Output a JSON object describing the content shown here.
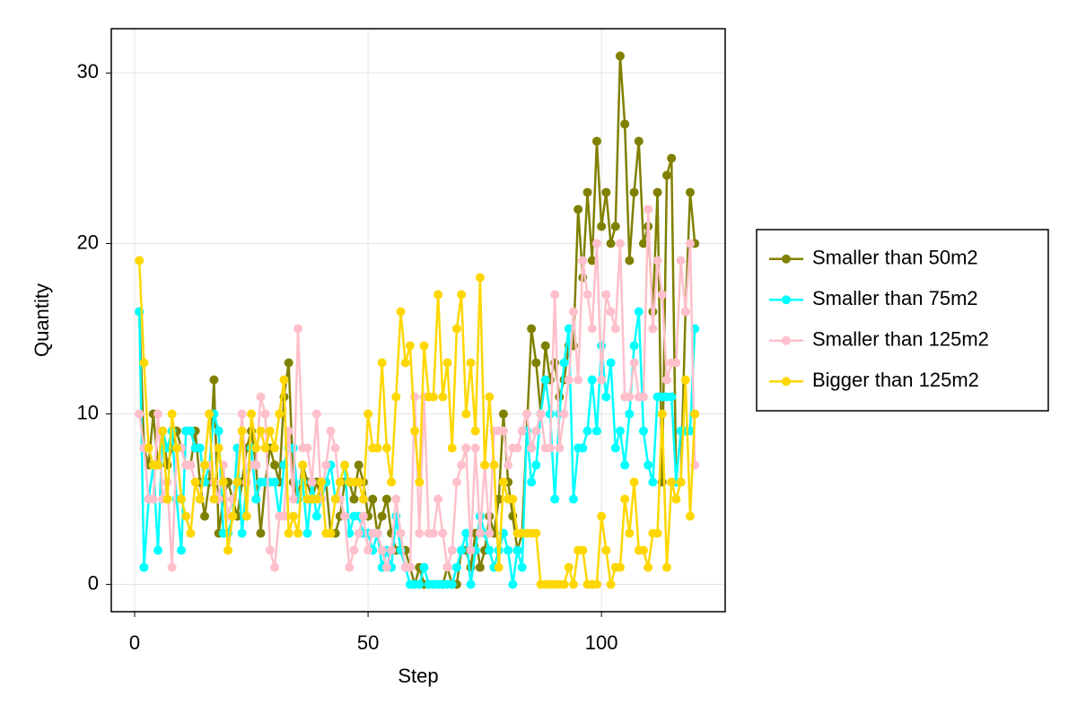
{
  "chart_data": {
    "type": "line",
    "xlabel": "Step",
    "ylabel": "Quantity",
    "x": [
      1,
      2,
      3,
      4,
      5,
      6,
      7,
      8,
      9,
      10,
      11,
      12,
      13,
      14,
      15,
      16,
      17,
      18,
      19,
      20,
      21,
      22,
      23,
      24,
      25,
      26,
      27,
      28,
      29,
      30,
      31,
      32,
      33,
      34,
      35,
      36,
      37,
      38,
      39,
      40,
      41,
      42,
      43,
      44,
      45,
      46,
      47,
      48,
      49,
      50,
      51,
      52,
      53,
      54,
      55,
      56,
      57,
      58,
      59,
      60,
      61,
      62,
      63,
      64,
      65,
      66,
      67,
      68,
      69,
      70,
      71,
      72,
      73,
      74,
      75,
      76,
      77,
      78,
      79,
      80,
      81,
      82,
      83,
      84,
      85,
      86,
      87,
      88,
      89,
      90,
      91,
      92,
      93,
      94,
      95,
      96,
      97,
      98,
      99,
      100,
      101,
      102,
      103,
      104,
      105,
      106,
      107,
      108,
      109,
      110,
      111,
      112,
      113,
      114,
      115,
      116,
      117,
      118,
      119,
      120
    ],
    "series": [
      {
        "name": "Smaller than 50m2",
        "color": "#808000",
        "values": [
          16,
          8,
          7,
          10,
          7,
          9,
          7,
          8,
          9,
          8,
          7,
          7,
          9,
          6,
          4,
          6,
          12,
          3,
          5,
          6,
          5,
          4,
          6,
          8,
          9,
          7,
          3,
          6,
          8,
          7,
          6,
          11,
          13,
          6,
          5,
          7,
          6,
          5,
          6,
          5,
          6,
          3,
          3,
          4,
          6,
          6,
          5,
          7,
          6,
          4,
          5,
          3,
          4,
          5,
          3,
          2,
          2,
          2,
          1,
          0,
          1,
          0,
          0,
          0,
          0,
          0,
          1,
          0,
          0,
          2,
          2,
          1,
          3,
          1,
          2,
          4,
          3,
          5,
          10,
          6,
          4,
          2,
          3,
          9,
          15,
          13,
          10,
          14,
          12,
          13,
          11,
          12,
          14,
          14,
          22,
          18,
          23,
          19,
          26,
          21,
          23,
          20,
          21,
          31,
          27,
          19,
          23,
          26,
          20,
          21,
          16,
          23,
          6,
          24,
          25,
          6,
          6,
          16,
          23,
          20
        ]
      },
      {
        "name": "Smaller than 75m2",
        "color": "#00ffff",
        "values": [
          16,
          1,
          5,
          7,
          2,
          9,
          8,
          9,
          5,
          2,
          9,
          9,
          8,
          8,
          6,
          7,
          10,
          9,
          3,
          3,
          4,
          8,
          3,
          6,
          8,
          5,
          6,
          6,
          6,
          6,
          4,
          7,
          8,
          8,
          5,
          6,
          3,
          6,
          4,
          5,
          6,
          7,
          5,
          6,
          7,
          3,
          4,
          4,
          3,
          3,
          2,
          3,
          1,
          2,
          1,
          4,
          2,
          1,
          0,
          0,
          0,
          1,
          0,
          0,
          0,
          0,
          0,
          0,
          1,
          2,
          3,
          0,
          2,
          4,
          3,
          2,
          1,
          2,
          3,
          2,
          0,
          2,
          1,
          9,
          6,
          7,
          10,
          12,
          10,
          5,
          10,
          13,
          15,
          5,
          8,
          8,
          9,
          12,
          9,
          14,
          11,
          13,
          8,
          9,
          7,
          10,
          14,
          16,
          9,
          7,
          6,
          11,
          11,
          11,
          11,
          6,
          9,
          9,
          9,
          15
        ]
      },
      {
        "name": "Smaller than 125m2",
        "color": "#ffc0cb",
        "values": [
          10,
          8,
          5,
          5,
          10,
          5,
          6,
          1,
          8,
          8,
          7,
          7,
          6,
          5,
          7,
          7,
          6,
          5,
          7,
          4,
          5,
          6,
          10,
          6,
          7,
          7,
          11,
          10,
          2,
          1,
          4,
          4,
          9,
          5,
          15,
          8,
          8,
          6,
          10,
          5,
          7,
          9,
          8,
          5,
          4,
          1,
          2,
          3,
          4,
          2,
          3,
          3,
          2,
          1,
          2,
          5,
          3,
          1,
          1,
          11,
          3,
          11,
          3,
          3,
          5,
          3,
          1,
          2,
          6,
          7,
          8,
          2,
          8,
          3,
          7,
          3,
          9,
          9,
          9,
          7,
          8,
          8,
          9,
          10,
          8,
          9,
          10,
          8,
          8,
          17,
          8,
          10,
          12,
          16,
          12,
          19,
          17,
          15,
          20,
          12,
          17,
          16,
          15,
          20,
          11,
          11,
          13,
          11,
          11,
          22,
          15,
          19,
          17,
          12,
          13,
          13,
          19,
          16,
          20,
          7
        ]
      },
      {
        "name": "Bigger than 125m2",
        "color": "#ffd700",
        "values": [
          19,
          13,
          8,
          7,
          7,
          9,
          5,
          10,
          8,
          5,
          4,
          3,
          6,
          5,
          7,
          10,
          5,
          8,
          6,
          2,
          4,
          6,
          9,
          4,
          10,
          8,
          9,
          8,
          9,
          8,
          10,
          12,
          3,
          4,
          3,
          7,
          5,
          5,
          5,
          6,
          3,
          3,
          5,
          6,
          7,
          6,
          6,
          6,
          5,
          10,
          8,
          8,
          13,
          8,
          6,
          11,
          16,
          13,
          14,
          9,
          6,
          14,
          11,
          11,
          17,
          11,
          13,
          8,
          15,
          17,
          10,
          13,
          9,
          18,
          7,
          11,
          7,
          1,
          6,
          5,
          5,
          3,
          3,
          3,
          3,
          3,
          0,
          0,
          0,
          0,
          0,
          0,
          1,
          0,
          2,
          2,
          0,
          0,
          0,
          4,
          2,
          0,
          1,
          1,
          5,
          3,
          6,
          2,
          2,
          1,
          3,
          3,
          10,
          1,
          6,
          5,
          6,
          12,
          4,
          10
        ]
      }
    ],
    "xlim": [
      -5,
      126.5
    ],
    "ylim": [
      -1.6,
      32.6
    ],
    "xticks": [
      0,
      50,
      100
    ],
    "yticks": [
      0,
      10,
      20,
      30
    ],
    "grid": true,
    "legend": "right"
  }
}
